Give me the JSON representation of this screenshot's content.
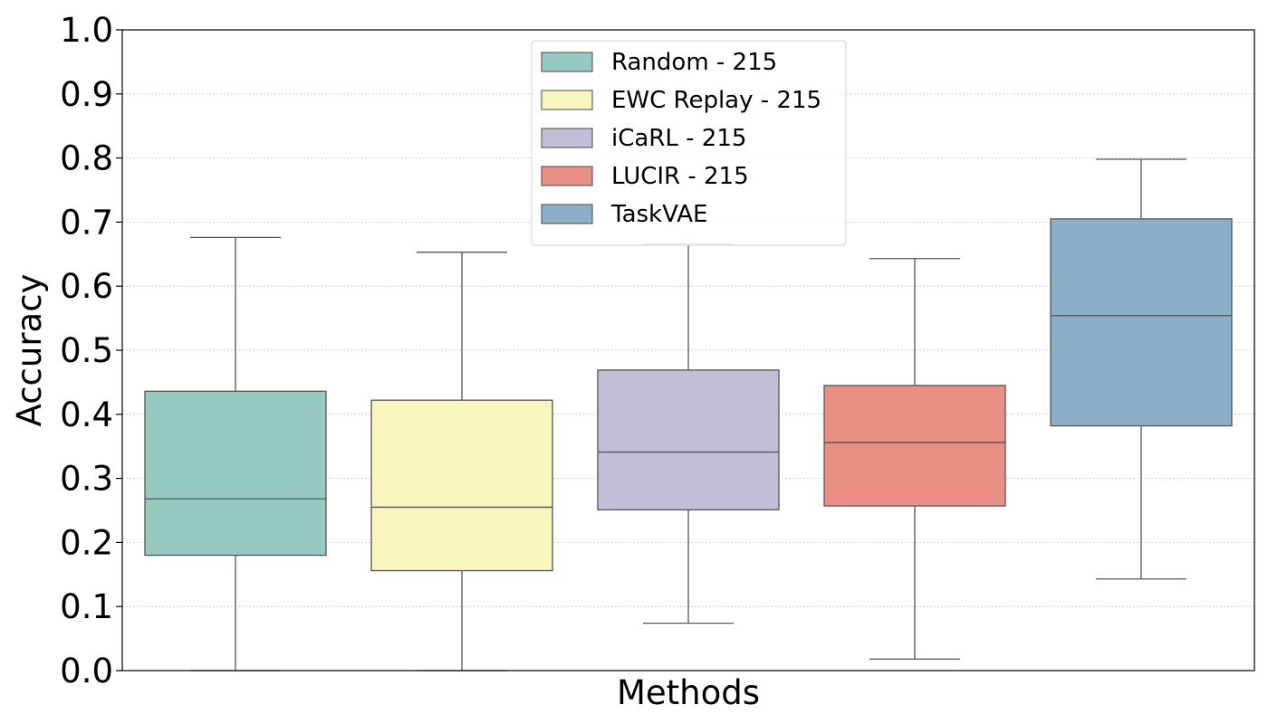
{
  "chart_data": {
    "type": "box",
    "xlabel": "Methods",
    "ylabel": "Accuracy",
    "ylim": [
      0.0,
      1.0
    ],
    "yticks": [
      "0.0",
      "0.1",
      "0.2",
      "0.3",
      "0.4",
      "0.5",
      "0.6",
      "0.7",
      "0.8",
      "0.9",
      "1.0"
    ],
    "grid": "horizontal-dotted",
    "legend_position": "top-center",
    "series": [
      {
        "name": "Random - 215",
        "color": "#96cac0",
        "min": 0.0,
        "q1": 0.18,
        "median": 0.268,
        "q3": 0.436,
        "max": 0.676
      },
      {
        "name": "EWC Replay - 215",
        "color": "#f6f6bd",
        "min": 0.0,
        "q1": 0.156,
        "median": 0.255,
        "q3": 0.422,
        "max": 0.653
      },
      {
        "name": "iCaRL - 215",
        "color": "#c1bed6",
        "min": 0.074,
        "q1": 0.251,
        "median": 0.341,
        "q3": 0.469,
        "max": 0.666
      },
      {
        "name": "LUCIR - 215",
        "color": "#ea8f83",
        "min": 0.018,
        "q1": 0.257,
        "median": 0.356,
        "q3": 0.445,
        "max": 0.643
      },
      {
        "name": "TaskVAE",
        "color": "#8bafc9",
        "min": 0.143,
        "q1": 0.382,
        "median": 0.554,
        "q3": 0.705,
        "max": 0.798
      }
    ]
  }
}
